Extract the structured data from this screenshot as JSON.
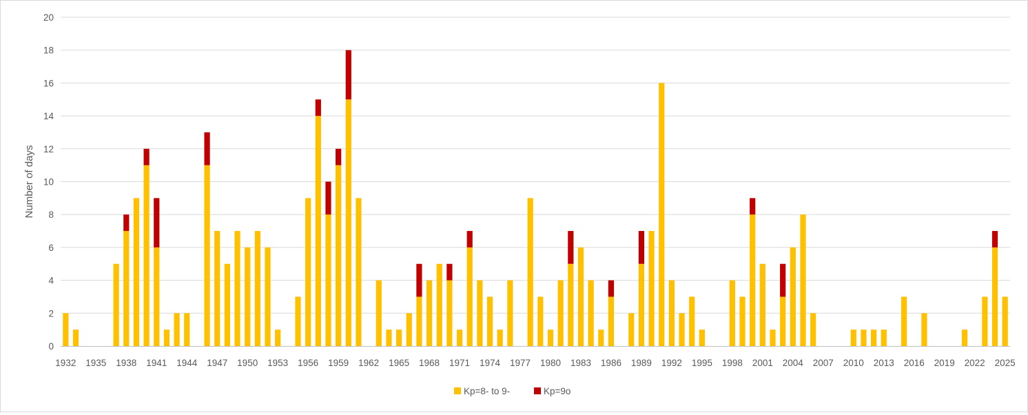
{
  "chart_data": {
    "type": "bar",
    "stacked": true,
    "title": "",
    "xlabel": "",
    "ylabel": "Number of days",
    "ylim": [
      0,
      20
    ],
    "yticks": [
      0,
      2,
      4,
      6,
      8,
      10,
      12,
      14,
      16,
      18,
      20
    ],
    "grid": true,
    "legend_position": "bottom",
    "year_range": [
      1932,
      2025
    ],
    "xtick_labels": [
      "1932",
      "1935",
      "1938",
      "1941",
      "1944",
      "1947",
      "1950",
      "1953",
      "1956",
      "1959",
      "1962",
      "1965",
      "1968",
      "1971",
      "1974",
      "1977",
      "1980",
      "1983",
      "1986",
      "1989",
      "1992",
      "1995",
      "1998",
      "2001",
      "2004",
      "2007",
      "2010",
      "2013",
      "2016",
      "2019",
      "2022",
      "2025"
    ],
    "series": [
      {
        "name": "Kp=8- to 9-",
        "color": "#FFC000",
        "points": [
          [
            1932,
            2
          ],
          [
            1933,
            1
          ],
          [
            1937,
            5
          ],
          [
            1938,
            7
          ],
          [
            1939,
            9
          ],
          [
            1940,
            11
          ],
          [
            1941,
            6
          ],
          [
            1942,
            1
          ],
          [
            1943,
            2
          ],
          [
            1944,
            2
          ],
          [
            1946,
            11
          ],
          [
            1947,
            7
          ],
          [
            1948,
            5
          ],
          [
            1949,
            7
          ],
          [
            1950,
            6
          ],
          [
            1951,
            7
          ],
          [
            1952,
            6
          ],
          [
            1953,
            1
          ],
          [
            1955,
            3
          ],
          [
            1956,
            9
          ],
          [
            1957,
            14
          ],
          [
            1958,
            8
          ],
          [
            1959,
            11
          ],
          [
            1960,
            15
          ],
          [
            1961,
            9
          ],
          [
            1963,
            4
          ],
          [
            1964,
            1
          ],
          [
            1965,
            1
          ],
          [
            1966,
            2
          ],
          [
            1967,
            3
          ],
          [
            1968,
            4
          ],
          [
            1969,
            5
          ],
          [
            1970,
            4
          ],
          [
            1971,
            1
          ],
          [
            1972,
            6
          ],
          [
            1973,
            4
          ],
          [
            1974,
            3
          ],
          [
            1975,
            1
          ],
          [
            1976,
            4
          ],
          [
            1978,
            9
          ],
          [
            1979,
            3
          ],
          [
            1980,
            1
          ],
          [
            1981,
            4
          ],
          [
            1982,
            5
          ],
          [
            1983,
            6
          ],
          [
            1984,
            4
          ],
          [
            1985,
            1
          ],
          [
            1986,
            3
          ],
          [
            1988,
            2
          ],
          [
            1989,
            5
          ],
          [
            1990,
            7
          ],
          [
            1991,
            16
          ],
          [
            1992,
            4
          ],
          [
            1993,
            2
          ],
          [
            1994,
            3
          ],
          [
            1995,
            1
          ],
          [
            1998,
            4
          ],
          [
            1999,
            3
          ],
          [
            2000,
            8
          ],
          [
            2001,
            5
          ],
          [
            2002,
            1
          ],
          [
            2003,
            3
          ],
          [
            2004,
            6
          ],
          [
            2005,
            8
          ],
          [
            2006,
            2
          ],
          [
            2010,
            1
          ],
          [
            2011,
            1
          ],
          [
            2012,
            1
          ],
          [
            2013,
            1
          ],
          [
            2015,
            3
          ],
          [
            2017,
            2
          ],
          [
            2021,
            1
          ],
          [
            2023,
            3
          ],
          [
            2024,
            6
          ],
          [
            2025,
            3
          ]
        ]
      },
      {
        "name": "Kp=9o",
        "color": "#C00000",
        "points": [
          [
            1938,
            1
          ],
          [
            1940,
            1
          ],
          [
            1941,
            3
          ],
          [
            1946,
            2
          ],
          [
            1957,
            1
          ],
          [
            1958,
            2
          ],
          [
            1959,
            1
          ],
          [
            1960,
            3
          ],
          [
            1967,
            2
          ],
          [
            1970,
            1
          ],
          [
            1972,
            1
          ],
          [
            1982,
            2
          ],
          [
            1986,
            1
          ],
          [
            1989,
            2
          ],
          [
            2000,
            1
          ],
          [
            2003,
            2
          ],
          [
            2024,
            1
          ]
        ]
      }
    ]
  }
}
